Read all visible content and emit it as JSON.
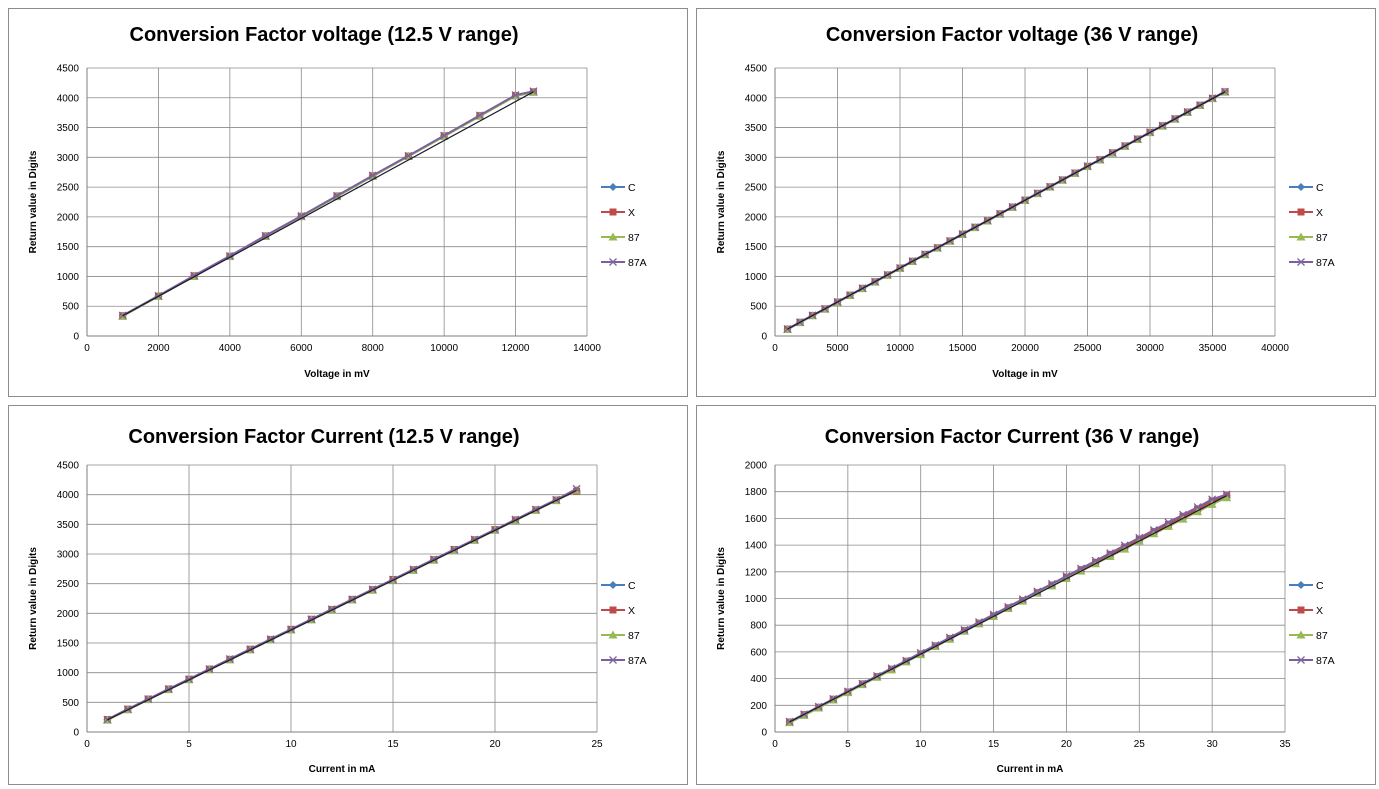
{
  "series_styles": [
    {
      "name": "C",
      "color": "#4a7ebb",
      "marker": "diamond"
    },
    {
      "name": "X",
      "color": "#be4b48",
      "marker": "square"
    },
    {
      "name": "87",
      "color": "#98b954",
      "marker": "triangle"
    },
    {
      "name": "87A",
      "color": "#7d60a0",
      "marker": "x"
    }
  ],
  "chart_data": [
    {
      "type": "line",
      "title": "Conversion Factor voltage (12.5 V range)",
      "xlabel": "Voltage in mV",
      "ylabel": "Return value in Digits",
      "xlim": [
        0,
        14000
      ],
      "ylim": [
        0,
        4500
      ],
      "xticks": [
        0,
        2000,
        4000,
        6000,
        8000,
        10000,
        12000,
        14000
      ],
      "yticks": [
        0,
        500,
        1000,
        1500,
        2000,
        2500,
        3000,
        3500,
        4000,
        4500
      ],
      "grid": true,
      "legend": "right",
      "x": [
        1000,
        2000,
        3000,
        4000,
        5000,
        6000,
        7000,
        8000,
        9000,
        10000,
        11000,
        12000,
        12500
      ],
      "series": [
        {
          "name": "C",
          "values": [
            340,
            670,
            1010,
            1340,
            1680,
            2010,
            2350,
            2690,
            3020,
            3360,
            3700,
            4040,
            4100
          ]
        },
        {
          "name": "X",
          "values": [
            340,
            670,
            1010,
            1340,
            1680,
            2010,
            2350,
            2690,
            3020,
            3360,
            3700,
            4040,
            4100
          ]
        },
        {
          "name": "87",
          "values": [
            330,
            665,
            1000,
            1335,
            1670,
            2005,
            2340,
            2680,
            3015,
            3350,
            3690,
            4030,
            4090
          ]
        },
        {
          "name": "87A",
          "values": [
            345,
            675,
            1015,
            1345,
            1685,
            2015,
            2355,
            2695,
            3025,
            3365,
            3705,
            4045,
            4110
          ]
        }
      ]
    },
    {
      "type": "line",
      "title": "Conversion Factor voltage (36 V range)",
      "xlabel": "Voltage in mV",
      "ylabel": "Return value in Digits",
      "xlim": [
        0,
        40000
      ],
      "ylim": [
        0,
        4500
      ],
      "xticks": [
        0,
        5000,
        10000,
        15000,
        20000,
        25000,
        30000,
        35000,
        40000
      ],
      "yticks": [
        0,
        500,
        1000,
        1500,
        2000,
        2500,
        3000,
        3500,
        4000,
        4500
      ],
      "grid": true,
      "legend": "right",
      "x": [
        1000,
        2000,
        3000,
        4000,
        5000,
        6000,
        7000,
        8000,
        9000,
        10000,
        11000,
        12000,
        13000,
        14000,
        15000,
        16000,
        17000,
        18000,
        19000,
        20000,
        21000,
        22000,
        23000,
        24000,
        25000,
        26000,
        27000,
        28000,
        29000,
        30000,
        31000,
        32000,
        33000,
        34000,
        35000,
        36000
      ],
      "series": [
        {
          "name": "C",
          "values": [
            115,
            230,
            345,
            455,
            570,
            685,
            800,
            910,
            1025,
            1140,
            1255,
            1370,
            1480,
            1595,
            1710,
            1825,
            1935,
            2050,
            2165,
            2280,
            2395,
            2505,
            2620,
            2735,
            2850,
            2960,
            3075,
            3190,
            3305,
            3420,
            3530,
            3645,
            3760,
            3875,
            3990,
            4100
          ]
        },
        {
          "name": "X",
          "values": [
            115,
            230,
            345,
            455,
            570,
            685,
            800,
            910,
            1025,
            1140,
            1255,
            1370,
            1480,
            1595,
            1710,
            1825,
            1935,
            2050,
            2165,
            2280,
            2395,
            2505,
            2620,
            2735,
            2850,
            2960,
            3075,
            3190,
            3305,
            3420,
            3530,
            3645,
            3760,
            3875,
            3990,
            4100
          ]
        },
        {
          "name": "87",
          "values": [
            110,
            225,
            340,
            450,
            565,
            680,
            795,
            905,
            1020,
            1135,
            1250,
            1365,
            1475,
            1590,
            1705,
            1820,
            1930,
            2045,
            2160,
            2275,
            2390,
            2500,
            2615,
            2730,
            2845,
            2955,
            3070,
            3185,
            3300,
            3415,
            3525,
            3640,
            3755,
            3870,
            3985,
            4095
          ]
        },
        {
          "name": "87A",
          "values": [
            118,
            233,
            348,
            458,
            573,
            688,
            803,
            913,
            1028,
            1143,
            1258,
            1373,
            1483,
            1598,
            1713,
            1828,
            1938,
            2053,
            2168,
            2283,
            2398,
            2508,
            2623,
            2738,
            2853,
            2963,
            3078,
            3193,
            3308,
            3423,
            3533,
            3648,
            3763,
            3878,
            3993,
            4105
          ]
        }
      ]
    },
    {
      "type": "line",
      "title": "Conversion Factor Current (12.5 V range)",
      "xlabel": "Current in mA",
      "ylabel": "Return value in Digits",
      "xlim": [
        0,
        25
      ],
      "ylim": [
        0,
        4500
      ],
      "xticks": [
        0,
        5,
        10,
        15,
        20,
        25
      ],
      "yticks": [
        0,
        500,
        1000,
        1500,
        2000,
        2500,
        3000,
        3500,
        4000,
        4500
      ],
      "grid": true,
      "legend": "right",
      "x": [
        1,
        2,
        3,
        4,
        5,
        6,
        7,
        8,
        9,
        10,
        11,
        12,
        13,
        14,
        15,
        16,
        17,
        18,
        19,
        20,
        21,
        22,
        23,
        24
      ],
      "series": [
        {
          "name": "C",
          "values": [
            205,
            380,
            550,
            720,
            885,
            1055,
            1220,
            1390,
            1555,
            1725,
            1895,
            2060,
            2230,
            2395,
            2565,
            2730,
            2900,
            3070,
            3235,
            3405,
            3570,
            3740,
            3905,
            4070
          ]
        },
        {
          "name": "X",
          "values": [
            210,
            385,
            555,
            725,
            890,
            1060,
            1225,
            1395,
            1560,
            1730,
            1900,
            2065,
            2235,
            2400,
            2570,
            2735,
            2905,
            3075,
            3240,
            3410,
            3575,
            3745,
            3910,
            4060
          ]
        },
        {
          "name": "87",
          "values": [
            200,
            375,
            545,
            715,
            880,
            1050,
            1215,
            1385,
            1550,
            1720,
            1890,
            2055,
            2225,
            2390,
            2560,
            2725,
            2895,
            3065,
            3230,
            3400,
            3565,
            3735,
            3900,
            4075
          ]
        },
        {
          "name": "87A",
          "values": [
            210,
            385,
            555,
            725,
            890,
            1060,
            1230,
            1395,
            1565,
            1730,
            1900,
            2070,
            2235,
            2405,
            2570,
            2740,
            2910,
            3075,
            3245,
            3410,
            3580,
            3750,
            3915,
            4100
          ]
        }
      ]
    },
    {
      "type": "line",
      "title": "Conversion Factor Current (36 V range)",
      "xlabel": "Current in mA",
      "ylabel": "Return value in Digits",
      "xlim": [
        0,
        35
      ],
      "ylim": [
        0,
        2000
      ],
      "xticks": [
        0,
        5,
        10,
        15,
        20,
        25,
        30,
        35
      ],
      "yticks": [
        0,
        200,
        400,
        600,
        800,
        1000,
        1200,
        1400,
        1600,
        1800,
        2000
      ],
      "grid": true,
      "legend": "right",
      "x": [
        1,
        2,
        3,
        4,
        5,
        6,
        7,
        8,
        9,
        10,
        11,
        12,
        13,
        14,
        15,
        16,
        17,
        18,
        19,
        20,
        21,
        22,
        23,
        24,
        25,
        26,
        27,
        28,
        29,
        30,
        31
      ],
      "series": [
        {
          "name": "C",
          "values": [
            75,
            130,
            185,
            245,
            300,
            360,
            415,
            470,
            530,
            585,
            645,
            700,
            760,
            815,
            870,
            930,
            985,
            1045,
            1100,
            1160,
            1215,
            1270,
            1330,
            1385,
            1445,
            1500,
            1555,
            1615,
            1670,
            1730,
            1770
          ]
        },
        {
          "name": "X",
          "values": [
            75,
            130,
            185,
            245,
            300,
            360,
            415,
            470,
            530,
            585,
            645,
            700,
            760,
            815,
            870,
            930,
            985,
            1045,
            1100,
            1160,
            1215,
            1270,
            1330,
            1385,
            1445,
            1500,
            1555,
            1615,
            1670,
            1730,
            1770
          ]
        },
        {
          "name": "87",
          "values": [
            70,
            125,
            180,
            240,
            295,
            355,
            410,
            465,
            525,
            580,
            640,
            695,
            755,
            810,
            865,
            925,
            980,
            1040,
            1095,
            1150,
            1205,
            1260,
            1315,
            1370,
            1430,
            1485,
            1540,
            1595,
            1650,
            1705,
            1755
          ]
        },
        {
          "name": "87A",
          "values": [
            78,
            133,
            190,
            248,
            305,
            363,
            420,
            478,
            535,
            593,
            650,
            708,
            765,
            823,
            880,
            938,
            995,
            1053,
            1110,
            1168,
            1225,
            1283,
            1340,
            1398,
            1455,
            1513,
            1570,
            1628,
            1685,
            1743,
            1780
          ]
        }
      ]
    }
  ]
}
